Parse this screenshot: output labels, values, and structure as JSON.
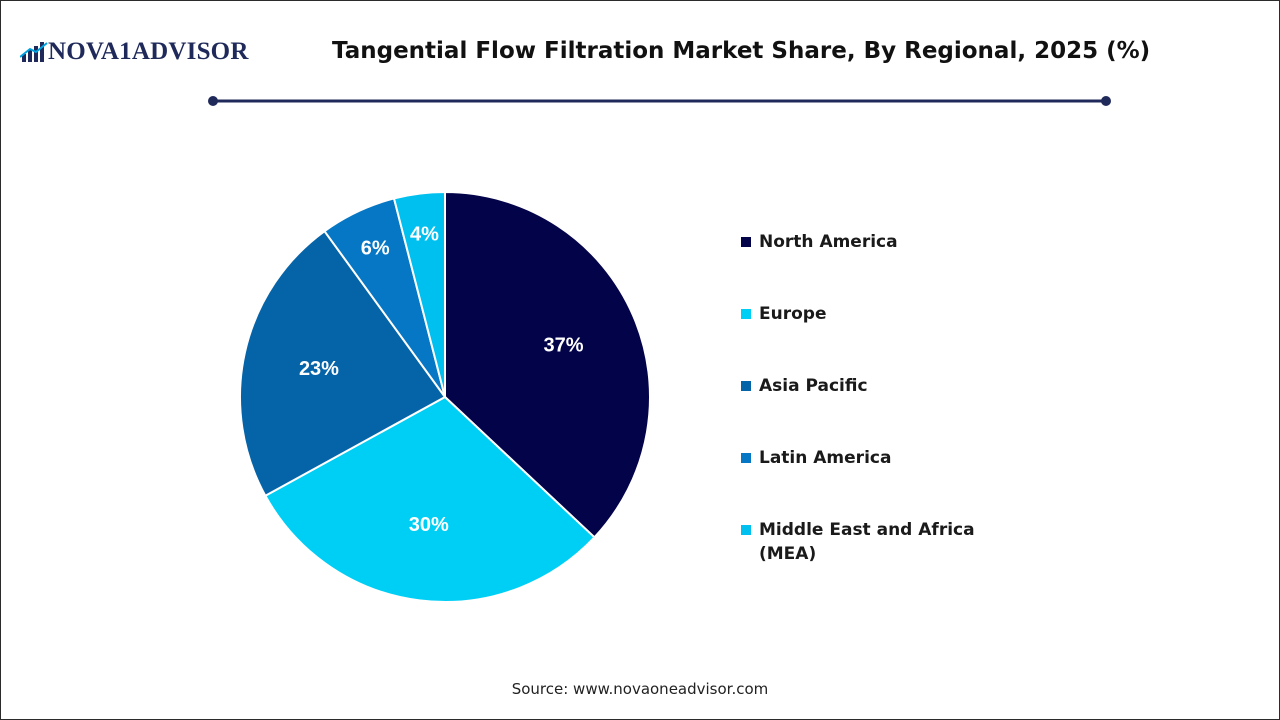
{
  "header": {
    "logo_text": "NOVA1ADVISOR",
    "title": "Tangential Flow Filtration Market Share, By Regional, 2025 (%)"
  },
  "colors": {
    "north_america": "#03034a",
    "europe": "#00cff5",
    "asia_pacific": "#0563a8",
    "latin_america": "#0577c4",
    "mea": "#00c0ef",
    "divider": "#1f2a5a"
  },
  "chart_data": {
    "type": "pie",
    "title": "Tangential Flow Filtration Market Share, By Regional, 2025 (%)",
    "unit": "%",
    "slices": [
      {
        "label": "North America",
        "value": 37,
        "display": "37%",
        "color": "#03034a"
      },
      {
        "label": "Europe",
        "value": 30,
        "display": "30%",
        "color": "#00cff5"
      },
      {
        "label": "Asia Pacific",
        "value": 23,
        "display": "23%",
        "color": "#0563a8"
      },
      {
        "label": "Latin America",
        "value": 6,
        "display": "6%",
        "color": "#0577c4"
      },
      {
        "label": "Middle East and Africa (MEA)",
        "value": 4,
        "display": "4%",
        "color": "#00c0ef"
      }
    ],
    "legend_position": "right"
  },
  "legend": {
    "items": [
      {
        "label": "North America",
        "color": "#03034a"
      },
      {
        "label": "Europe",
        "color": "#00cff5"
      },
      {
        "label": "Asia Pacific",
        "color": "#0563a8"
      },
      {
        "label": "Latin America",
        "color": "#0577c4"
      },
      {
        "label": "Middle East and Africa\n(MEA)",
        "color": "#00c0ef"
      }
    ]
  },
  "footer": {
    "source": "Source: www.novaoneadvisor.com"
  }
}
